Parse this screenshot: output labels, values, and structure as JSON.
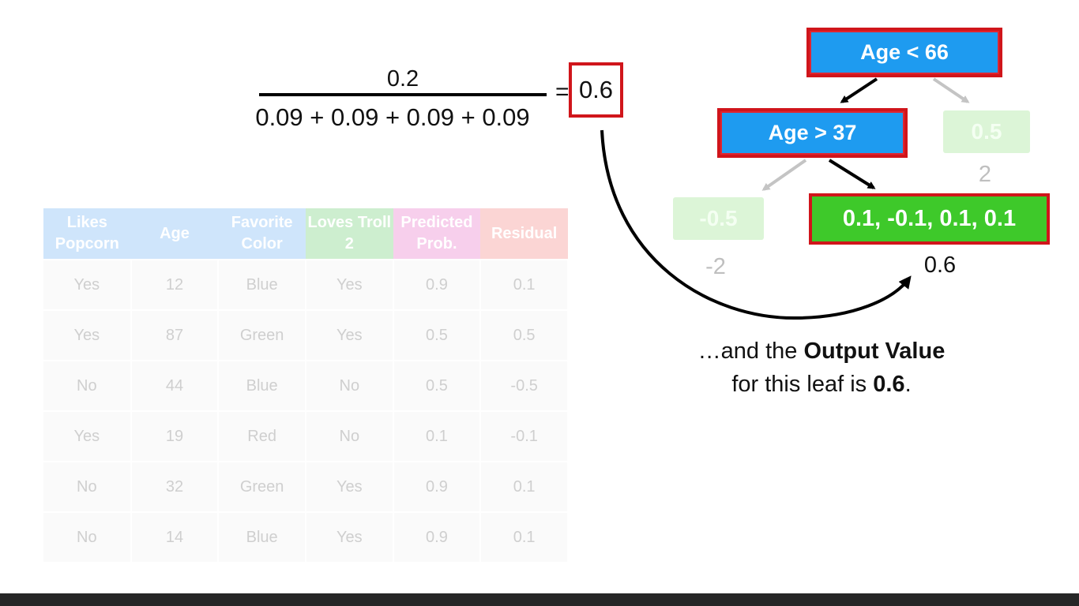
{
  "formula": {
    "numerator": "0.2",
    "denominator": "0.09 + 0.09 + 0.09 + 0.09",
    "equals": "=",
    "result": "0.6"
  },
  "table": {
    "headers": [
      {
        "text": "Likes Popcorn",
        "color": "#cfe5fb"
      },
      {
        "text": "Age",
        "color": "#cfe5fb"
      },
      {
        "text": "Favorite Color",
        "color": "#cfe5fb"
      },
      {
        "text": "Loves Troll 2",
        "color": "#cdeecf"
      },
      {
        "text": "Predicted Prob.",
        "color": "#f7cfec"
      },
      {
        "text": "Residual",
        "color": "#fbd5d4"
      }
    ],
    "rows": [
      [
        "Yes",
        "12",
        "Blue",
        "Yes",
        "0.9",
        "0.1"
      ],
      [
        "Yes",
        "87",
        "Green",
        "Yes",
        "0.5",
        "0.5"
      ],
      [
        "No",
        "44",
        "Blue",
        "No",
        "0.5",
        "-0.5"
      ],
      [
        "Yes",
        "19",
        "Red",
        "No",
        "0.1",
        "-0.1"
      ],
      [
        "No",
        "32",
        "Green",
        "Yes",
        "0.9",
        "0.1"
      ],
      [
        "No",
        "14",
        "Blue",
        "Yes",
        "0.9",
        "0.1"
      ]
    ]
  },
  "tree": {
    "root": "Age < 66",
    "mid": "Age > 37",
    "leaf_focus": "0.1, -0.1, 0.1, 0.1",
    "leaf_focus_value": "0.6",
    "leaf_left": "-0.5",
    "leaf_left_value": "-2",
    "leaf_right": "0.5",
    "leaf_right_value": "2"
  },
  "caption": {
    "prefix": "…and the ",
    "bold1": "Output Value",
    "line2_prefix": "for this leaf is ",
    "bold2": "0.6",
    "suffix": "."
  },
  "colors": {
    "node_blue": "#1e9bf0",
    "node_green": "#3ec92a",
    "highlight_red": "#d0151b"
  }
}
